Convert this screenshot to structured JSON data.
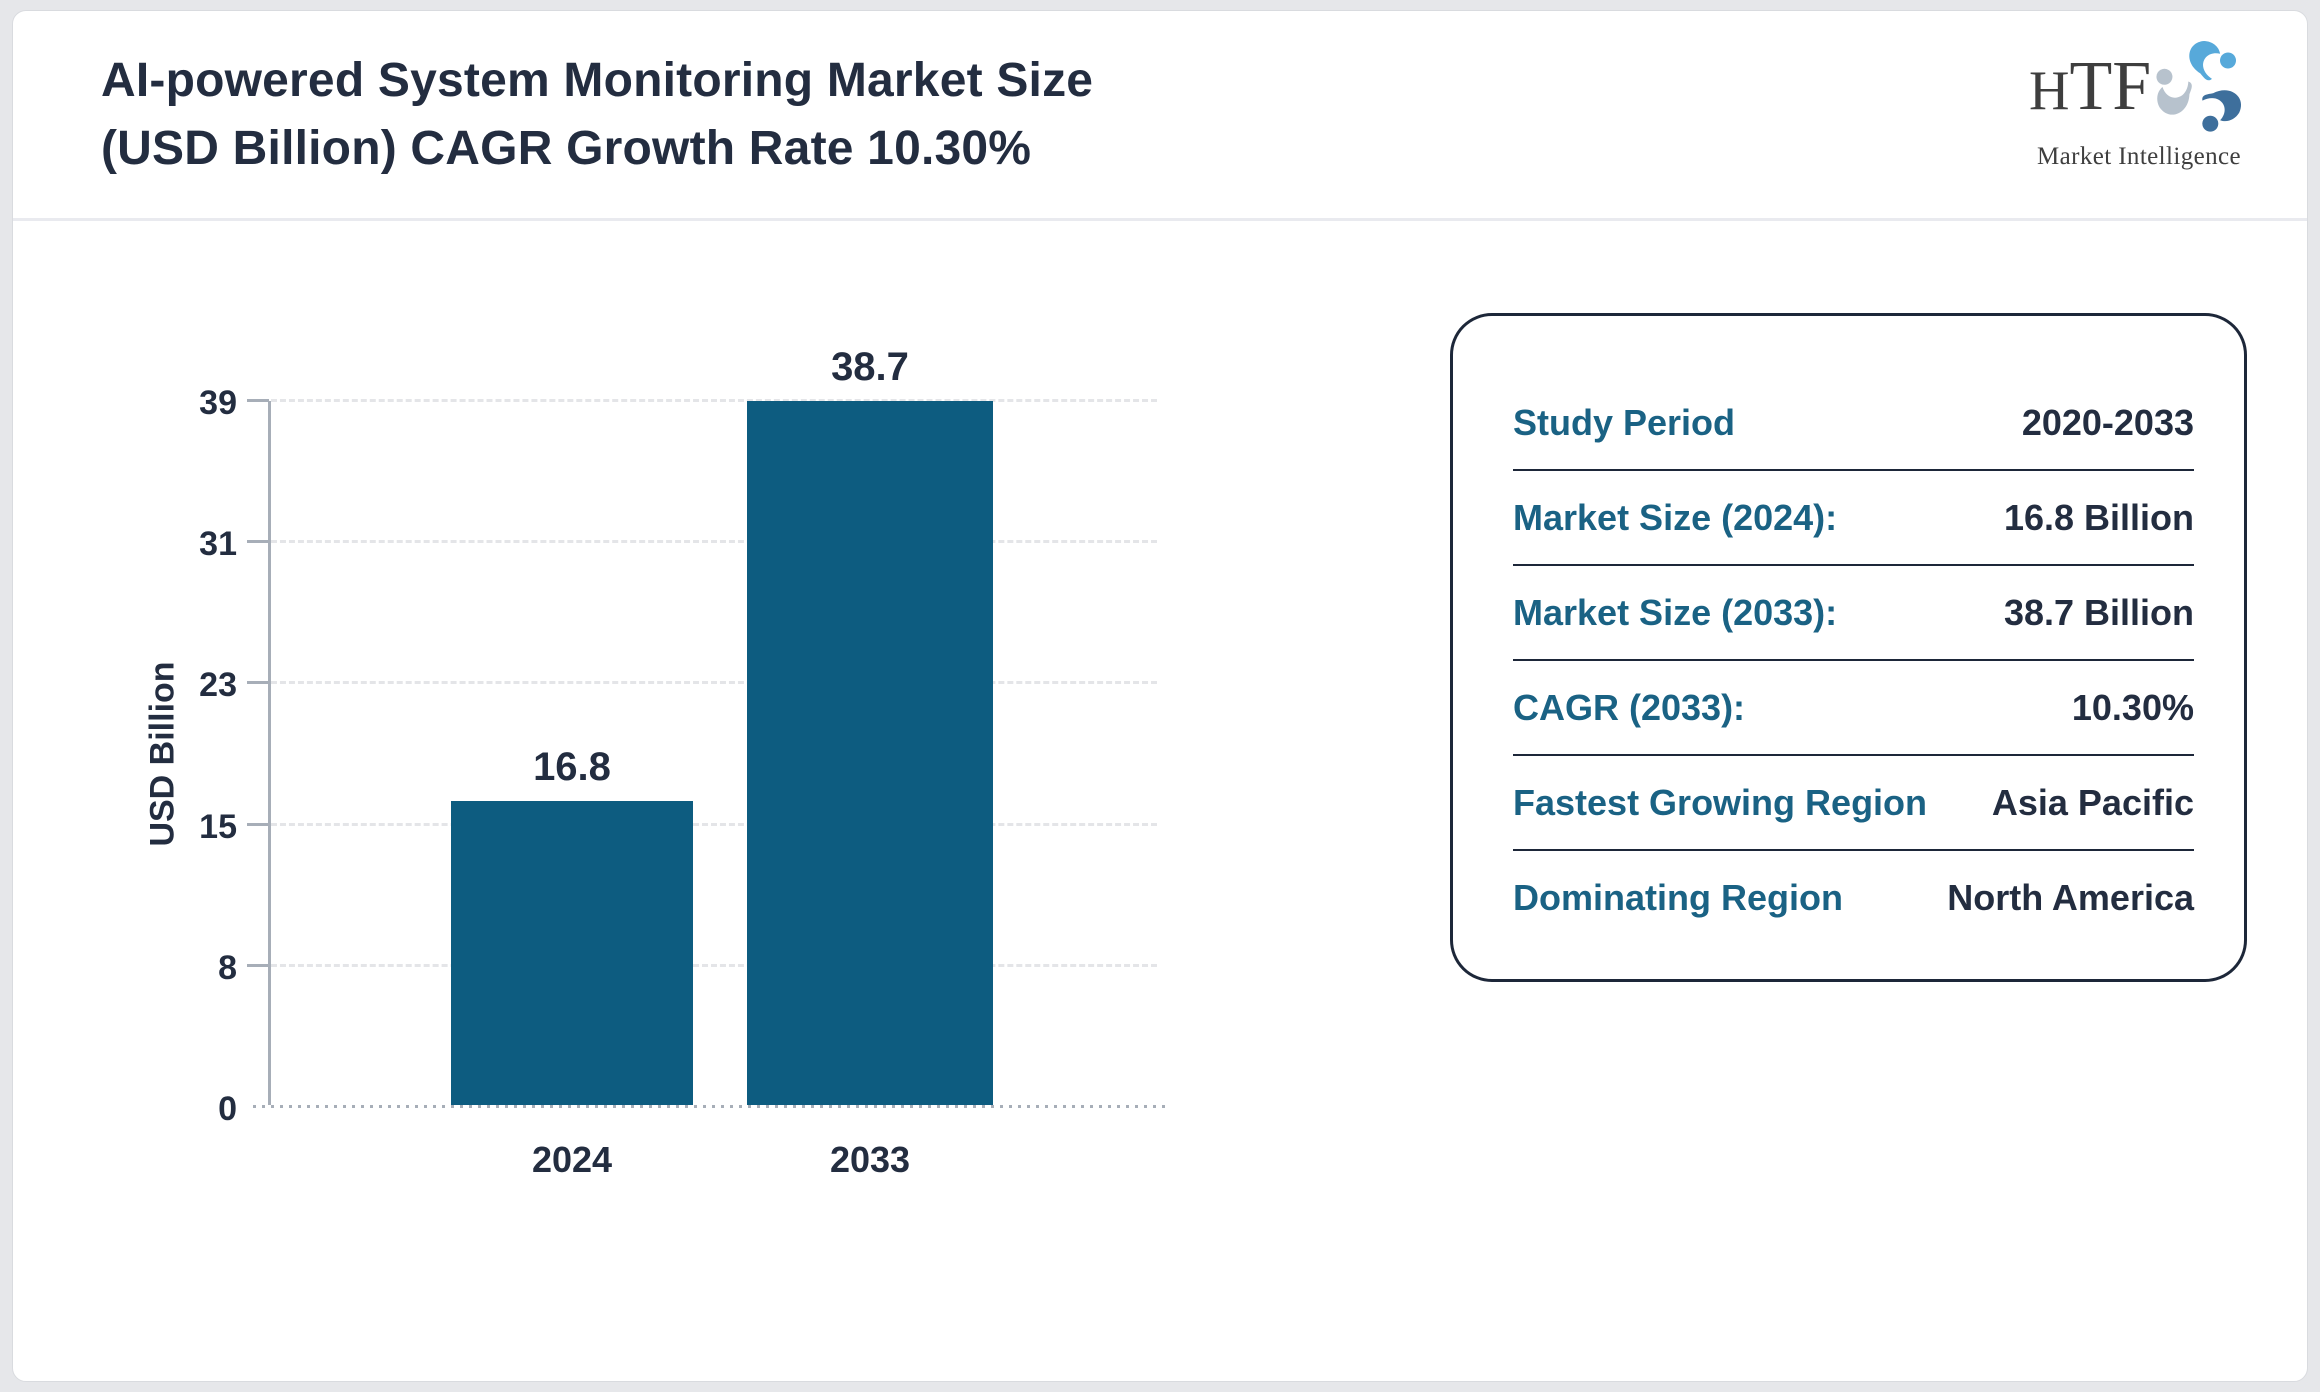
{
  "header": {
    "title_lines": [
      "AI-powered System Monitoring Market Size",
      "(USD Billion) CAGR Growth Rate 10.30%"
    ]
  },
  "logo": {
    "text_h": "H",
    "text_tf": "TF",
    "tagline": "Market Intelligence",
    "icon": "three-figures-swirl-icon",
    "colors": {
      "figure_light_blue": "#57a9da",
      "figure_steel_blue": "#3e6f9c",
      "figure_gray": "#b7c2cd"
    }
  },
  "chart_data": {
    "type": "bar",
    "title": "AI-powered System Monitoring Market Size (USD Billion) CAGR Growth Rate 10.30%",
    "categories": [
      "2024",
      "2033"
    ],
    "values": [
      16.8,
      38.7
    ],
    "data_labels": [
      "16.8",
      "38.7"
    ],
    "xlabel": "",
    "ylabel": "USD Billion",
    "yticks": [
      0,
      8,
      15,
      23,
      31,
      39
    ],
    "ylim": [
      0,
      38.7
    ],
    "bar_color": "#0d5c80",
    "grid": "horizontal-dashed",
    "legend": "none"
  },
  "info_panel": {
    "rows": [
      {
        "label": "Study Period",
        "value": "2020-2033"
      },
      {
        "label": "Market Size (2024):",
        "value": "16.8 Billion"
      },
      {
        "label": "Market Size (2033):",
        "value": "38.7 Billion"
      },
      {
        "label": "CAGR (2033):",
        "value": "10.30%"
      },
      {
        "label": "Fastest Growing Region",
        "value": "Asia Pacific"
      },
      {
        "label": "Dominating Region",
        "value": "North America"
      }
    ],
    "label_color": "#1a6284",
    "value_color": "#232d40",
    "border_color": "#1d2739"
  }
}
